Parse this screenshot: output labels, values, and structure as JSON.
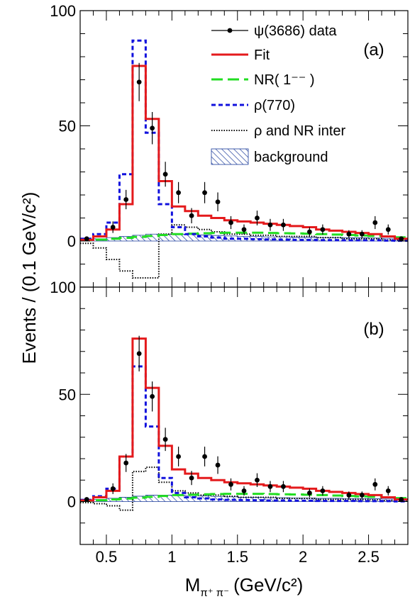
{
  "chart_data": {
    "type": "histogram",
    "ylabel": "Events / (0.1 GeV/c²)",
    "xlabel": "M",
    "xlabel_sub": "π⁺ π⁻",
    "xlabel_unit": "(GeV/c²)",
    "xlim": [
      0.3,
      2.8
    ],
    "ylim": [
      -20,
      100
    ],
    "x_ticks": [
      0.5,
      1,
      1.5,
      2,
      2.5
    ],
    "x_tick_labels": [
      "0.5",
      "1",
      "1.5",
      "2",
      "2.5"
    ],
    "y_ticks": [
      0,
      50,
      100
    ],
    "y_tick_labels": [
      "0",
      "50",
      "100"
    ],
    "bin_edges": [
      0.3,
      0.4,
      0.5,
      0.6,
      0.7,
      0.8,
      0.9,
      1.0,
      1.1,
      1.2,
      1.3,
      1.4,
      1.5,
      1.6,
      1.7,
      1.8,
      1.9,
      2.0,
      2.1,
      2.2,
      2.3,
      2.4,
      2.5,
      2.6,
      2.7,
      2.8
    ],
    "colors": {
      "data": "#000000",
      "fit": "#e41a1c",
      "nr": "#22dd22",
      "rho": "#1111dd",
      "inter": "#000000",
      "background": "#1a3a9a"
    },
    "legend": [
      {
        "key": "data",
        "label": "ψ(3686) data"
      },
      {
        "key": "fit",
        "label": "Fit"
      },
      {
        "key": "nr",
        "label": "NR( 1⁻⁻ )"
      },
      {
        "key": "rho",
        "label": "ρ(770)"
      },
      {
        "key": "inter",
        "label": "ρ and NR inter"
      },
      {
        "key": "background",
        "label": "background"
      }
    ],
    "data_points": [
      {
        "x": 0.35,
        "y": 1,
        "err": 1
      },
      {
        "x": 0.55,
        "y": 6,
        "err": 2.5
      },
      {
        "x": 0.65,
        "y": 18,
        "err": 4.2
      },
      {
        "x": 0.75,
        "y": 69,
        "err": 8.3
      },
      {
        "x": 0.85,
        "y": 49,
        "err": 7
      },
      {
        "x": 0.95,
        "y": 29,
        "err": 5.4
      },
      {
        "x": 1.05,
        "y": 21,
        "err": 4.6
      },
      {
        "x": 1.15,
        "y": 11,
        "err": 3.3
      },
      {
        "x": 1.25,
        "y": 21,
        "err": 4.6
      },
      {
        "x": 1.35,
        "y": 17,
        "err": 4.1
      },
      {
        "x": 1.45,
        "y": 8,
        "err": 2.8
      },
      {
        "x": 1.55,
        "y": 5,
        "err": 2.2
      },
      {
        "x": 1.65,
        "y": 10,
        "err": 3.2
      },
      {
        "x": 1.75,
        "y": 7,
        "err": 2.6
      },
      {
        "x": 1.85,
        "y": 7,
        "err": 2.6
      },
      {
        "x": 2.05,
        "y": 4,
        "err": 2
      },
      {
        "x": 2.15,
        "y": 5,
        "err": 2.2
      },
      {
        "x": 2.35,
        "y": 3,
        "err": 1.7
      },
      {
        "x": 2.45,
        "y": 3,
        "err": 1.7
      },
      {
        "x": 2.55,
        "y": 8,
        "err": 2.8
      },
      {
        "x": 2.65,
        "y": 5,
        "err": 2.2
      },
      {
        "x": 2.75,
        "y": 1,
        "err": 1
      }
    ],
    "panels": [
      {
        "label": "(a)",
        "show_legend": true,
        "fit": [
          0.5,
          2,
          5,
          16,
          76,
          53,
          26,
          15,
          13,
          11,
          10,
          9,
          8.5,
          8,
          7.5,
          7,
          6.5,
          6,
          5,
          4.5,
          4,
          3.5,
          3,
          2,
          1
        ],
        "rho": [
          1,
          3,
          8,
          29,
          87,
          47,
          16,
          6,
          3,
          2,
          1.5,
          1,
          1,
          0.8,
          0.7,
          0.6,
          0.5,
          0.5,
          0.4,
          0.4,
          0.3,
          0.3,
          0.3,
          0.2,
          0.1
        ],
        "nr": [
          0.3,
          0.6,
          1,
          1.4,
          1.8,
          2.2,
          2.6,
          3,
          3.2,
          3.4,
          3.5,
          3.6,
          3.6,
          3.6,
          3.5,
          3.4,
          3.3,
          3.2,
          3,
          2.8,
          2.6,
          2.4,
          2.2,
          2,
          1.6
        ],
        "inter": [
          -1,
          -3,
          -8,
          -13,
          -16,
          -16,
          3,
          7,
          6,
          5,
          4,
          3,
          3,
          2.5,
          2.5,
          2,
          2,
          2,
          1.5,
          1.5,
          1,
          1,
          1,
          0.5,
          0.5
        ],
        "background": [
          0.5,
          1,
          1.5,
          2,
          2.5,
          3,
          3,
          3,
          2.8,
          2.6,
          2.4,
          2.2,
          2,
          2,
          1.8,
          1.8,
          1.6,
          1.6,
          1.5,
          1.5,
          1.4,
          1.4,
          1.3,
          1.2,
          1
        ]
      },
      {
        "label": "(b)",
        "show_legend": false,
        "fit": [
          0.5,
          2,
          5,
          21,
          76,
          53,
          26,
          15,
          13,
          11,
          10,
          9,
          8.5,
          8,
          7.5,
          7,
          6.5,
          6,
          5,
          4.5,
          4,
          3.5,
          3,
          2,
          1
        ],
        "rho": [
          0.8,
          2.5,
          6,
          21,
          63,
          35,
          11,
          4,
          2,
          1.5,
          1,
          0.8,
          0.7,
          0.6,
          0.5,
          0.5,
          0.4,
          0.4,
          0.3,
          0.3,
          0.3,
          0.2,
          0.2,
          0.2,
          0.1
        ],
        "nr": [
          0.3,
          0.6,
          1,
          1.4,
          1.8,
          2.2,
          2.6,
          3,
          3.2,
          3.4,
          3.5,
          3.6,
          3.6,
          3.6,
          3.5,
          3.4,
          3.3,
          3.2,
          3,
          2.8,
          2.6,
          2.4,
          2.2,
          2,
          1.6
        ],
        "inter": [
          -0.5,
          -1,
          -2,
          -4,
          14,
          16,
          9,
          5,
          4,
          3,
          3,
          2.5,
          2,
          2,
          2,
          1.5,
          1.5,
          1.5,
          1,
          1,
          1,
          1,
          0.8,
          0.5,
          0.5
        ],
        "background": [
          0.5,
          1,
          1.5,
          2,
          2.5,
          3,
          3,
          3,
          2.8,
          2.6,
          2.4,
          2.2,
          2,
          2,
          1.8,
          1.8,
          1.6,
          1.6,
          1.5,
          1.5,
          1.4,
          1.4,
          1.3,
          1.2,
          1
        ]
      }
    ]
  }
}
